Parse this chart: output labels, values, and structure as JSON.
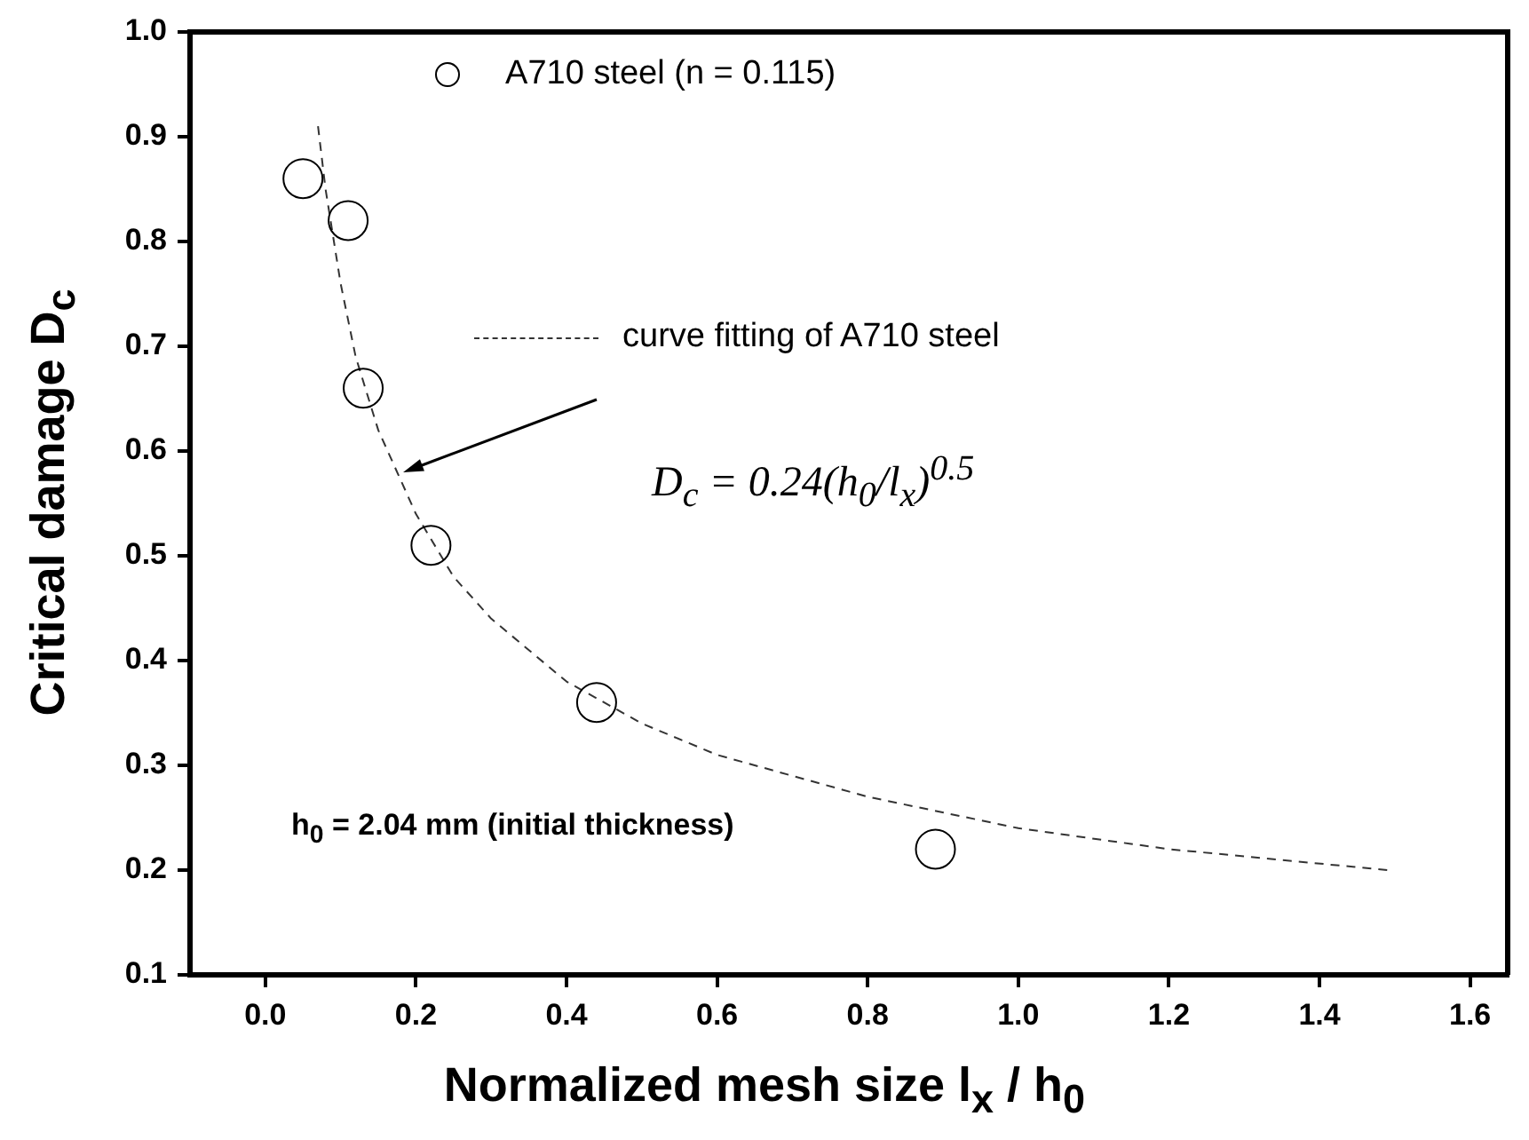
{
  "chart_data": {
    "type": "scatter",
    "xlabel": "Normalized mesh size l$_{x}$ / h$_{0}$",
    "ylabel": "Critical damage D$_{c}$",
    "annotations": [
      "D$_{c}$ = 0.24(h$_{0}$/l$_{x}$)$^{0.5}$",
      "h$_{0}$ = 2.04 mm (initial thickness)"
    ],
    "xlim": [
      -0.1,
      1.65
    ],
    "xticks": [
      {
        "value": 0,
        "label": "0.0"
      },
      0.2,
      0.4,
      0.6,
      0.8,
      {
        "value": 1,
        "label": "1.0"
      },
      1.2,
      1.4,
      1.6
    ],
    "ylim": [
      0.1,
      1.0
    ],
    "yticks": [
      0.1,
      0.2,
      0.3,
      0.4,
      0.5,
      0.6,
      0.7,
      0.8,
      0.9,
      {
        "value": 1,
        "label": "1.0"
      }
    ],
    "grid": false,
    "legend": "top",
    "series": [
      {
        "name": "A710 steel (n = 0.115)",
        "marker": "circle",
        "color": "#000000",
        "x": [
          0.05,
          0.11,
          0.13,
          0.22,
          0.44,
          0.89
        ],
        "values": [
          0.86,
          0.82,
          0.66,
          0.51,
          0.36,
          0.22
        ]
      },
      {
        "name": "curve fitting of A710 steel",
        "type": "line",
        "marker": "none",
        "line_style": "dashed",
        "color": "#333333",
        "x": [
          0.07,
          0.08,
          0.1,
          0.12,
          0.15,
          0.2,
          0.25,
          0.3,
          0.4,
          0.5,
          0.6,
          0.8,
          1.0,
          1.2,
          1.49
        ],
        "values": [
          0.91,
          0.85,
          0.76,
          0.69,
          0.62,
          0.54,
          0.48,
          0.44,
          0.38,
          0.34,
          0.31,
          0.27,
          0.24,
          0.22,
          0.2
        ]
      }
    ]
  }
}
